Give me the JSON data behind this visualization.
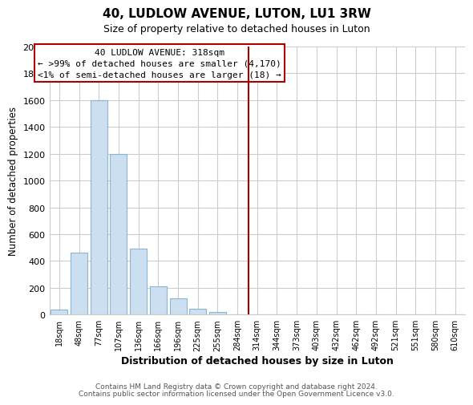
{
  "title": "40, LUDLOW AVENUE, LUTON, LU1 3RW",
  "subtitle": "Size of property relative to detached houses in Luton",
  "xlabel": "Distribution of detached houses by size in Luton",
  "ylabel": "Number of detached properties",
  "bar_labels": [
    "18sqm",
    "48sqm",
    "77sqm",
    "107sqm",
    "136sqm",
    "166sqm",
    "196sqm",
    "225sqm",
    "255sqm",
    "284sqm",
    "314sqm",
    "344sqm",
    "373sqm",
    "403sqm",
    "432sqm",
    "462sqm",
    "492sqm",
    "521sqm",
    "551sqm",
    "580sqm",
    "610sqm"
  ],
  "bar_values": [
    40,
    460,
    1600,
    1200,
    490,
    210,
    120,
    45,
    20,
    0,
    0,
    0,
    0,
    0,
    0,
    0,
    0,
    0,
    0,
    0,
    0
  ],
  "bar_color": "#ccdff0",
  "bar_edge_color": "#8ab4d4",
  "ylim": [
    0,
    2000
  ],
  "yticks": [
    0,
    200,
    400,
    600,
    800,
    1000,
    1200,
    1400,
    1600,
    1800,
    2000
  ],
  "property_line_idx": 10,
  "property_line_color": "#aa0000",
  "annotation_title": "40 LUDLOW AVENUE: 318sqm",
  "annotation_line1": "← >99% of detached houses are smaller (4,170)",
  "annotation_line2": "<1% of semi-detached houses are larger (18) →",
  "footer_line1": "Contains HM Land Registry data © Crown copyright and database right 2024.",
  "footer_line2": "Contains public sector information licensed under the Open Government Licence v3.0.",
  "background_color": "#ffffff",
  "grid_color": "#cccccc"
}
